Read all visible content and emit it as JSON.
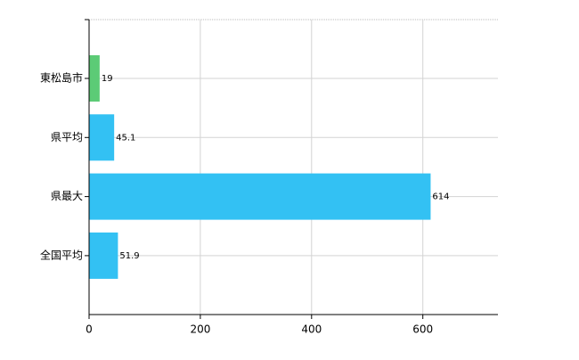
{
  "chart_data": {
    "type": "bar",
    "orientation": "horizontal",
    "categories": [
      "東松島市",
      "県平均",
      "県最大",
      "全国平均"
    ],
    "values": [
      19,
      45.1,
      614,
      51.9
    ],
    "colors": [
      "#5ccb76",
      "#33c1f3",
      "#33c1f3",
      "#33c1f3"
    ],
    "xlim": [
      0,
      735
    ],
    "xticks": [
      0,
      200,
      400,
      600
    ],
    "grid": true
  }
}
